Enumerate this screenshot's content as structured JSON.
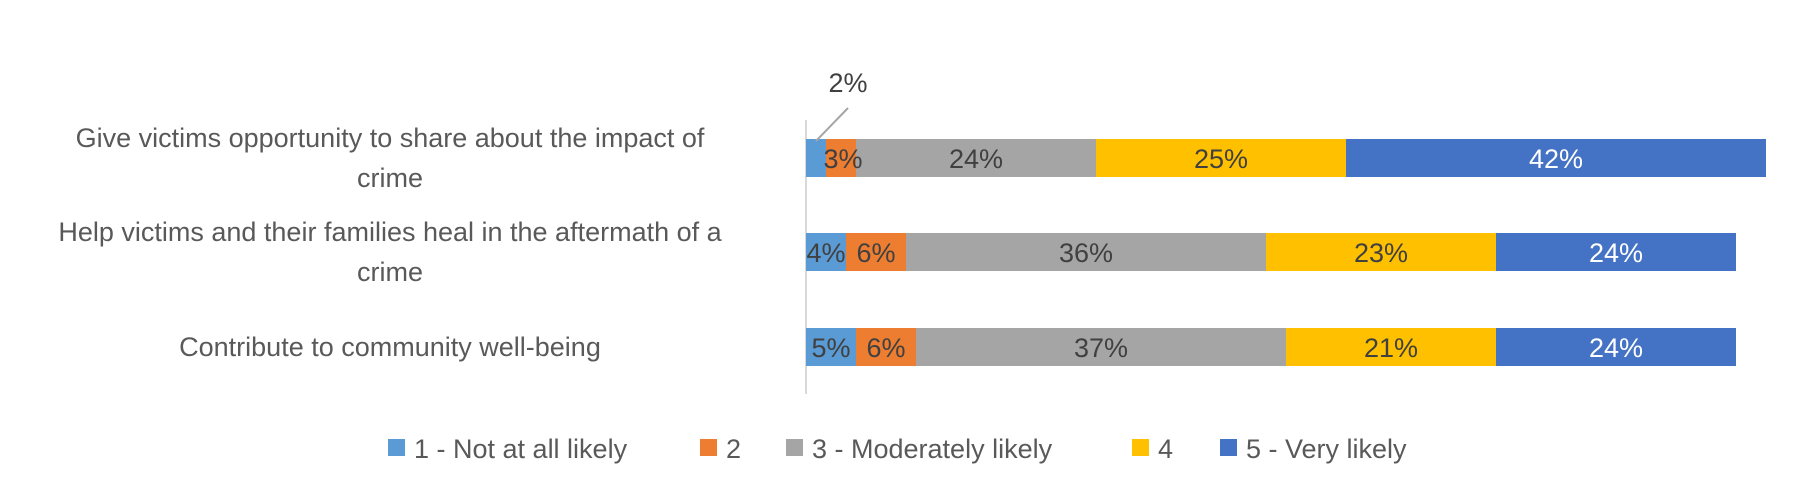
{
  "chart_data": {
    "type": "bar",
    "orientation": "horizontal",
    "stacked": true,
    "title": "",
    "xlabel": "",
    "ylabel": "",
    "xlim": [
      0,
      100
    ],
    "grid": false,
    "legend": "bottom",
    "categories": [
      [
        "Give victims opportunity to share about the impact of",
        "crime"
      ],
      [
        "Help victims and their families heal in the aftermath of a",
        "crime"
      ],
      [
        "Contribute to community well-being"
      ]
    ],
    "series": [
      {
        "name": "1 - Not at all likely",
        "color": "#5B9BD5",
        "text_color": "#404040",
        "values": [
          2,
          4,
          5
        ],
        "labels": [
          "2%",
          "4%",
          "5%"
        ]
      },
      {
        "name": "2",
        "color": "#ED7D31",
        "text_color": "#404040",
        "values": [
          3,
          6,
          6
        ],
        "labels": [
          "3%",
          "6%",
          "6%"
        ]
      },
      {
        "name": "3 - Moderately likely",
        "color": "#A5A5A5",
        "text_color": "#404040",
        "values": [
          24,
          36,
          37
        ],
        "labels": [
          "24%",
          "36%",
          "37%"
        ]
      },
      {
        "name": "4",
        "color": "#FFC000",
        "text_color": "#404040",
        "values": [
          25,
          23,
          21
        ],
        "labels": [
          "25%",
          "23%",
          "21%"
        ]
      },
      {
        "name": "5 - Very likely",
        "color": "#4472C4",
        "text_color": "#ffffff",
        "values": [
          42,
          24,
          24
        ],
        "labels": [
          "42%",
          "24%",
          "24%"
        ]
      }
    ]
  }
}
